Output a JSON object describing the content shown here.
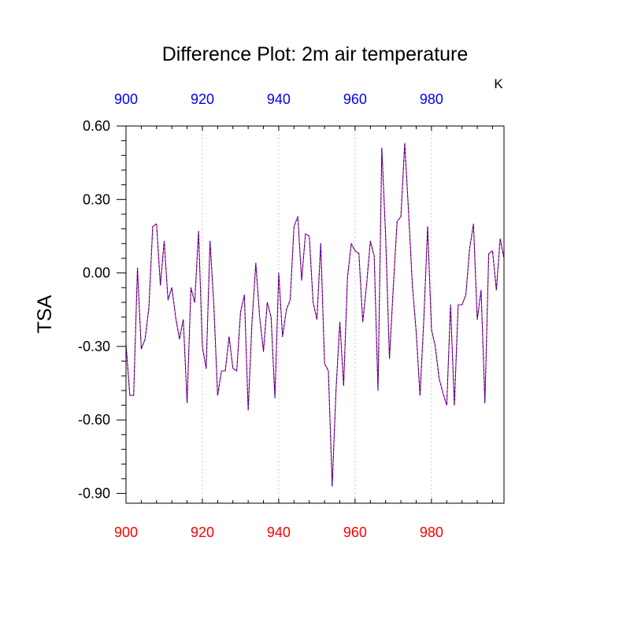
{
  "chart_data": {
    "type": "line",
    "title": "Difference Plot: 2m air temperature",
    "ylabel": "TSA",
    "units": "K",
    "xlim": [
      900,
      999
    ],
    "ylim": [
      -0.94,
      0.6
    ],
    "x_ticks": [
      900,
      920,
      940,
      960,
      980
    ],
    "x_tick_labels": [
      "900",
      "920",
      "940",
      "960",
      "980"
    ],
    "y_ticks": [
      0.6,
      0.3,
      0.0,
      -0.3,
      -0.6,
      -0.9
    ],
    "y_tick_labels": [
      "0.60",
      "0.30",
      "0.00",
      "-0.30",
      "-0.60",
      "-0.90"
    ],
    "grid": "vertical dotted at major x ticks",
    "bottom_axis_color": "#ff0000",
    "top_axis_color": "#0000ff",
    "series": [
      {
        "color": "#ff0000",
        "dash": "solid",
        "x_start": 900,
        "values": [
          -0.29,
          -0.5,
          -0.5,
          0.02,
          -0.31,
          -0.27,
          -0.14,
          0.19,
          0.2,
          -0.05,
          0.13,
          -0.11,
          -0.06,
          -0.18,
          -0.27,
          -0.19,
          -0.53,
          -0.06,
          -0.12,
          0.17,
          -0.3,
          -0.39,
          0.13,
          -0.13,
          -0.5,
          -0.4,
          -0.4,
          -0.26,
          -0.39,
          -0.4,
          -0.16,
          -0.09,
          -0.56,
          -0.2,
          0.04,
          -0.18,
          -0.32,
          -0.12,
          -0.18,
          -0.51,
          0.0,
          -0.26,
          -0.15,
          -0.11,
          0.19,
          0.23,
          -0.03,
          0.16,
          0.15,
          -0.12,
          -0.19,
          0.12,
          -0.37,
          -0.4,
          -0.87,
          -0.48,
          -0.2,
          -0.46,
          -0.02,
          0.12,
          0.09,
          0.08,
          -0.2,
          -0.05,
          0.13,
          0.07,
          -0.48,
          0.51,
          0.15,
          -0.35,
          -0.06,
          0.21,
          0.23,
          0.53,
          0.25,
          -0.05,
          -0.24,
          -0.5,
          -0.19,
          0.19,
          -0.23,
          -0.3,
          -0.43,
          -0.49,
          -0.54,
          -0.13,
          -0.54,
          -0.13,
          -0.13,
          -0.09,
          0.1,
          0.2,
          -0.19,
          -0.07,
          -0.53,
          0.08,
          0.09,
          -0.07,
          0.14,
          0.06
        ]
      },
      {
        "color": "#0000ff",
        "dash": "dashed",
        "x_start": 900,
        "values": [
          -0.29,
          -0.5,
          -0.5,
          0.02,
          -0.31,
          -0.27,
          -0.14,
          0.19,
          0.2,
          -0.05,
          0.13,
          -0.11,
          -0.06,
          -0.18,
          -0.27,
          -0.19,
          -0.53,
          -0.06,
          -0.12,
          0.17,
          -0.3,
          -0.39,
          0.13,
          -0.13,
          -0.5,
          -0.4,
          -0.4,
          -0.26,
          -0.39,
          -0.4,
          -0.16,
          -0.09,
          -0.56,
          -0.2,
          0.04,
          -0.18,
          -0.32,
          -0.12,
          -0.18,
          -0.51,
          0.0,
          -0.26,
          -0.15,
          -0.11,
          0.19,
          0.23,
          -0.03,
          0.16,
          0.15,
          -0.12,
          -0.19,
          0.12,
          -0.37,
          -0.4,
          -0.87,
          -0.48,
          -0.2,
          -0.46,
          -0.02,
          0.12,
          0.09,
          0.08,
          -0.2,
          -0.05,
          0.13,
          0.07,
          -0.48,
          0.51,
          0.15,
          -0.35,
          -0.06,
          0.21,
          0.23,
          0.53,
          0.25,
          -0.05,
          -0.24,
          -0.5,
          -0.19,
          0.19,
          -0.23,
          -0.3,
          -0.43,
          -0.49,
          -0.54,
          -0.13,
          -0.54,
          -0.13,
          -0.13,
          -0.09,
          0.1,
          0.2,
          -0.19,
          -0.07,
          -0.53,
          0.08,
          0.09,
          -0.07,
          0.14,
          0.06
        ]
      }
    ]
  }
}
